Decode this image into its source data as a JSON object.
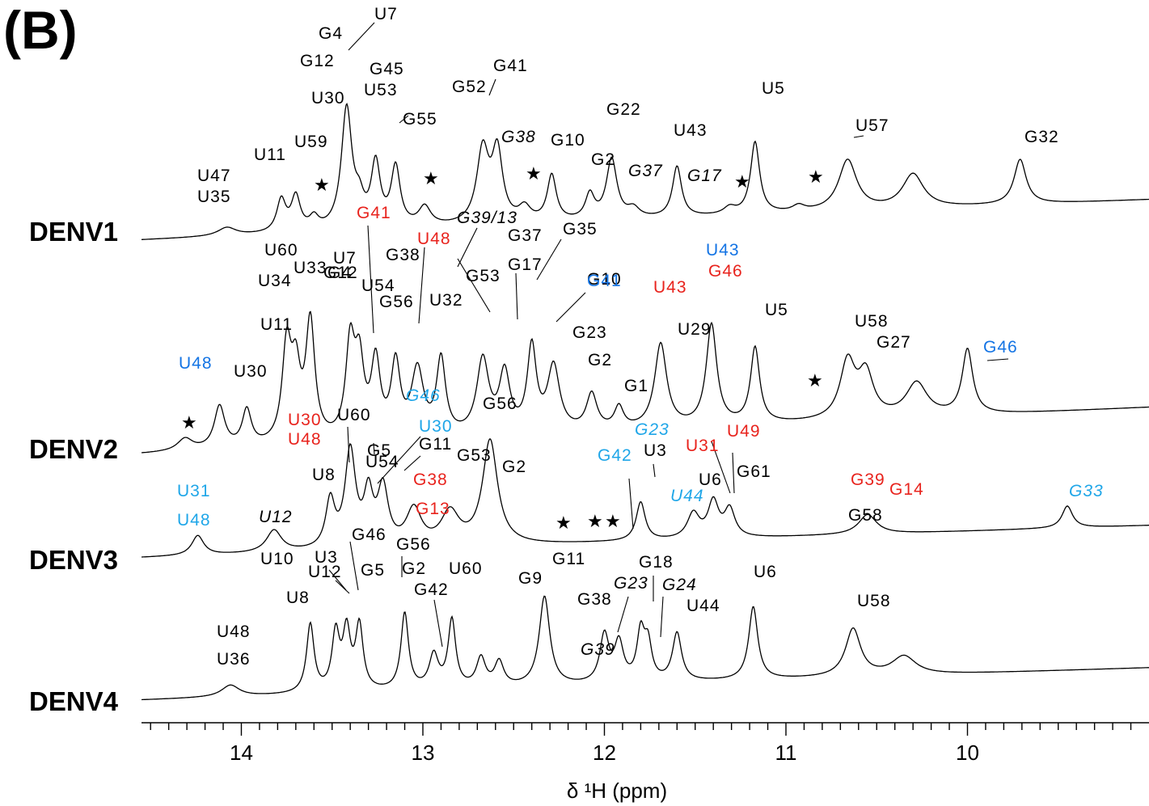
{
  "panel_label": "(B)",
  "colors": {
    "black": "#000000",
    "red": "#e8231d",
    "blue": "#1474e4",
    "cyan": "#1fa6e8"
  },
  "chart_data": {
    "type": "line",
    "title": "",
    "xlabel": "δ ¹H (ppm)",
    "ylabel": "",
    "xlim": [
      14.55,
      9.0
    ],
    "x_reversed": true,
    "x_ticks": [
      14,
      13,
      12,
      11,
      10
    ],
    "x_tick_labels": [
      "14",
      "13",
      "12",
      "11",
      "10"
    ],
    "minor_tick_step": 0.1,
    "grid": false,
    "legend": "none",
    "series": [
      {
        "name": "DENV1",
        "baseline": 0.0,
        "peaks": [
          {
            "ppm": 14.08,
            "h": 0.07,
            "w": 0.06
          },
          {
            "ppm": 13.78,
            "h": 0.27,
            "w": 0.03
          },
          {
            "ppm": 13.7,
            "h": 0.29,
            "w": 0.03
          },
          {
            "ppm": 13.6,
            "h": 0.1,
            "w": 0.03
          },
          {
            "ppm": 13.42,
            "h": 1.02,
            "w": 0.035
          },
          {
            "ppm": 13.35,
            "h": 0.18,
            "w": 0.03
          },
          {
            "ppm": 13.26,
            "h": 0.53,
            "w": 0.03
          },
          {
            "ppm": 13.15,
            "h": 0.5,
            "w": 0.03
          },
          {
            "ppm": 12.99,
            "h": 0.16,
            "w": 0.04
          },
          {
            "ppm": 12.67,
            "h": 0.62,
            "w": 0.04
          },
          {
            "ppm": 12.59,
            "h": 0.59,
            "w": 0.035
          },
          {
            "ppm": 12.44,
            "h": 0.12,
            "w": 0.04
          },
          {
            "ppm": 12.29,
            "h": 0.39,
            "w": 0.03
          },
          {
            "ppm": 12.08,
            "h": 0.21,
            "w": 0.03
          },
          {
            "ppm": 11.96,
            "h": 0.51,
            "w": 0.035
          },
          {
            "ppm": 11.84,
            "h": 0.08,
            "w": 0.04
          },
          {
            "ppm": 11.6,
            "h": 0.43,
            "w": 0.03
          },
          {
            "ppm": 11.31,
            "h": 0.06,
            "w": 0.04
          },
          {
            "ppm": 11.17,
            "h": 0.61,
            "w": 0.03
          },
          {
            "ppm": 10.93,
            "h": 0.05,
            "w": 0.04
          },
          {
            "ppm": 10.66,
            "h": 0.43,
            "w": 0.06
          },
          {
            "ppm": 10.3,
            "h": 0.29,
            "w": 0.07
          },
          {
            "ppm": 9.71,
            "h": 0.38,
            "w": 0.04
          }
        ]
      },
      {
        "name": "DENV2",
        "baseline": 0.0,
        "peaks": [
          {
            "ppm": 14.31,
            "h": 0.1,
            "w": 0.05
          },
          {
            "ppm": 14.12,
            "h": 0.35,
            "w": 0.035
          },
          {
            "ppm": 13.97,
            "h": 0.3,
            "w": 0.03
          },
          {
            "ppm": 13.75,
            "h": 0.78,
            "w": 0.03
          },
          {
            "ppm": 13.7,
            "h": 0.54,
            "w": 0.03
          },
          {
            "ppm": 13.62,
            "h": 0.98,
            "w": 0.03
          },
          {
            "ppm": 13.4,
            "h": 0.77,
            "w": 0.03
          },
          {
            "ppm": 13.35,
            "h": 0.59,
            "w": 0.03
          },
          {
            "ppm": 13.26,
            "h": 0.62,
            "w": 0.03
          },
          {
            "ppm": 13.15,
            "h": 0.6,
            "w": 0.03
          },
          {
            "ppm": 13.03,
            "h": 0.55,
            "w": 0.04
          },
          {
            "ppm": 12.9,
            "h": 0.63,
            "w": 0.03
          },
          {
            "ppm": 12.67,
            "h": 0.62,
            "w": 0.04
          },
          {
            "ppm": 12.55,
            "h": 0.49,
            "w": 0.035
          },
          {
            "ppm": 12.4,
            "h": 0.7,
            "w": 0.03
          },
          {
            "ppm": 12.28,
            "h": 0.54,
            "w": 0.04
          },
          {
            "ppm": 12.07,
            "h": 0.3,
            "w": 0.035
          },
          {
            "ppm": 11.92,
            "h": 0.18,
            "w": 0.03
          },
          {
            "ppm": 11.69,
            "h": 0.7,
            "w": 0.04
          },
          {
            "ppm": 11.41,
            "h": 0.84,
            "w": 0.035
          },
          {
            "ppm": 11.17,
            "h": 0.63,
            "w": 0.03
          },
          {
            "ppm": 10.66,
            "h": 0.47,
            "w": 0.05
          },
          {
            "ppm": 10.56,
            "h": 0.36,
            "w": 0.05
          },
          {
            "ppm": 10.28,
            "h": 0.28,
            "w": 0.07
          },
          {
            "ppm": 10.0,
            "h": 0.54,
            "w": 0.035
          }
        ]
      },
      {
        "name": "DENV3",
        "baseline": 0.0,
        "peaks": [
          {
            "ppm": 14.24,
            "h": 0.26,
            "w": 0.04
          },
          {
            "ppm": 13.82,
            "h": 0.29,
            "w": 0.05
          },
          {
            "ppm": 13.51,
            "h": 0.62,
            "w": 0.03
          },
          {
            "ppm": 13.4,
            "h": 1.27,
            "w": 0.035
          },
          {
            "ppm": 13.3,
            "h": 0.66,
            "w": 0.03
          },
          {
            "ppm": 13.22,
            "h": 0.76,
            "w": 0.035
          },
          {
            "ppm": 13.05,
            "h": 0.48,
            "w": 0.05
          },
          {
            "ppm": 12.85,
            "h": 0.43,
            "w": 0.06
          },
          {
            "ppm": 12.63,
            "h": 1.38,
            "w": 0.05
          },
          {
            "ppm": 11.8,
            "h": 0.51,
            "w": 0.03
          },
          {
            "ppm": 11.51,
            "h": 0.33,
            "w": 0.04
          },
          {
            "ppm": 11.4,
            "h": 0.47,
            "w": 0.035
          },
          {
            "ppm": 11.31,
            "h": 0.37,
            "w": 0.035
          },
          {
            "ppm": 10.55,
            "h": 0.26,
            "w": 0.06
          },
          {
            "ppm": 9.45,
            "h": 0.29,
            "w": 0.035
          }
        ]
      },
      {
        "name": "DENV4",
        "baseline": 0.0,
        "peaks": [
          {
            "ppm": 14.06,
            "h": 0.16,
            "w": 0.06
          },
          {
            "ppm": 13.62,
            "h": 0.95,
            "w": 0.025
          },
          {
            "ppm": 13.48,
            "h": 0.79,
            "w": 0.025
          },
          {
            "ppm": 13.42,
            "h": 0.8,
            "w": 0.025
          },
          {
            "ppm": 13.35,
            "h": 0.89,
            "w": 0.025
          },
          {
            "ppm": 13.1,
            "h": 1.06,
            "w": 0.025
          },
          {
            "ppm": 12.94,
            "h": 0.46,
            "w": 0.03
          },
          {
            "ppm": 12.84,
            "h": 0.94,
            "w": 0.025
          },
          {
            "ppm": 12.68,
            "h": 0.4,
            "w": 0.03
          },
          {
            "ppm": 12.58,
            "h": 0.34,
            "w": 0.03
          },
          {
            "ppm": 12.33,
            "h": 1.24,
            "w": 0.035
          },
          {
            "ppm": 12.0,
            "h": 0.66,
            "w": 0.03
          },
          {
            "ppm": 11.92,
            "h": 0.54,
            "w": 0.03
          },
          {
            "ppm": 11.8,
            "h": 0.66,
            "w": 0.025
          },
          {
            "ppm": 11.76,
            "h": 0.5,
            "w": 0.025
          },
          {
            "ppm": 11.6,
            "h": 0.67,
            "w": 0.03
          },
          {
            "ppm": 11.18,
            "h": 1.01,
            "w": 0.03
          },
          {
            "ppm": 10.63,
            "h": 0.66,
            "w": 0.05
          },
          {
            "ppm": 10.35,
            "h": 0.26,
            "w": 0.08
          }
        ]
      }
    ]
  },
  "annotations": {
    "denv1": [
      {
        "text": "G4",
        "color": "black",
        "italic": false
      },
      {
        "text": "U7",
        "color": "black",
        "italic": false
      },
      {
        "text": "G12",
        "color": "black",
        "italic": false
      },
      {
        "text": "G45",
        "color": "black",
        "italic": false
      },
      {
        "text": "U30",
        "color": "black",
        "italic": false
      },
      {
        "text": "U53",
        "color": "black",
        "italic": false
      },
      {
        "text": "G52",
        "color": "black",
        "italic": false
      },
      {
        "text": "G41",
        "color": "black",
        "italic": false
      },
      {
        "text": "G55",
        "color": "black",
        "italic": false
      },
      {
        "text": "G22",
        "color": "black",
        "italic": false
      },
      {
        "text": "U5",
        "color": "black",
        "italic": false
      },
      {
        "text": "U43",
        "color": "black",
        "italic": false
      },
      {
        "text": "U57",
        "color": "black",
        "italic": false
      },
      {
        "text": "G32",
        "color": "black",
        "italic": false
      },
      {
        "text": "U59",
        "color": "black",
        "italic": false
      },
      {
        "text": "U11",
        "color": "black",
        "italic": false
      },
      {
        "text": "G38",
        "color": "black",
        "italic": true
      },
      {
        "text": "G10",
        "color": "black",
        "italic": false
      },
      {
        "text": "G2",
        "color": "black",
        "italic": false
      },
      {
        "text": "G37",
        "color": "black",
        "italic": true
      },
      {
        "text": "G17",
        "color": "black",
        "italic": true
      },
      {
        "text": "U47",
        "color": "black",
        "italic": false
      },
      {
        "text": "U35",
        "color": "black",
        "italic": false
      }
    ],
    "denv2": [
      {
        "text": "G41",
        "color": "red",
        "italic": false
      },
      {
        "text": "U33",
        "color": "black",
        "italic": false
      },
      {
        "text": "G39/13",
        "color": "black",
        "italic": true
      },
      {
        "text": "U48",
        "color": "red",
        "italic": false
      },
      {
        "text": "G37",
        "color": "black",
        "italic": false
      },
      {
        "text": "G35",
        "color": "black",
        "italic": false
      },
      {
        "text": "U60",
        "color": "black",
        "italic": false
      },
      {
        "text": "U7",
        "color": "black",
        "italic": false
      },
      {
        "text": "G4",
        "color": "black",
        "italic": false
      },
      {
        "text": "G38",
        "color": "black",
        "italic": false
      },
      {
        "text": "G12",
        "color": "black",
        "italic": false
      },
      {
        "text": "G53",
        "color": "black",
        "italic": false
      },
      {
        "text": "G17",
        "color": "black",
        "italic": false
      },
      {
        "text": "G10",
        "color": "black",
        "italic": false
      },
      {
        "text": "G41",
        "color": "blue",
        "italic": false
      },
      {
        "text": "U43",
        "color": "blue",
        "italic": false
      },
      {
        "text": "G46",
        "color": "red",
        "italic": false
      },
      {
        "text": "U43",
        "color": "red",
        "italic": false
      },
      {
        "text": "U34",
        "color": "black",
        "italic": false
      },
      {
        "text": "U54",
        "color": "black",
        "italic": false
      },
      {
        "text": "G56",
        "color": "black",
        "italic": false
      },
      {
        "text": "U32",
        "color": "black",
        "italic": false
      },
      {
        "text": "U5",
        "color": "black",
        "italic": false
      },
      {
        "text": "U11",
        "color": "black",
        "italic": false
      },
      {
        "text": "G23",
        "color": "black",
        "italic": false
      },
      {
        "text": "U29",
        "color": "black",
        "italic": false
      },
      {
        "text": "U58",
        "color": "black",
        "italic": false
      },
      {
        "text": "G27",
        "color": "black",
        "italic": false
      },
      {
        "text": "G2",
        "color": "black",
        "italic": false
      },
      {
        "text": "U48",
        "color": "blue",
        "italic": false
      },
      {
        "text": "U30",
        "color": "black",
        "italic": false
      },
      {
        "text": "G46",
        "color": "blue",
        "italic": false
      },
      {
        "text": "G1",
        "color": "black",
        "italic": false
      }
    ],
    "denv3": [
      {
        "text": "G46",
        "color": "cyan",
        "italic": true
      },
      {
        "text": "G56",
        "color": "black",
        "italic": false
      },
      {
        "text": "U60",
        "color": "black",
        "italic": false
      },
      {
        "text": "U30",
        "color": "red",
        "italic": false
      },
      {
        "text": "U30",
        "color": "cyan",
        "italic": false
      },
      {
        "text": "U48",
        "color": "red",
        "italic": false
      },
      {
        "text": "G5",
        "color": "black",
        "italic": false
      },
      {
        "text": "G11",
        "color": "black",
        "italic": false
      },
      {
        "text": "G23",
        "color": "cyan",
        "italic": true
      },
      {
        "text": "U49",
        "color": "red",
        "italic": false
      },
      {
        "text": "U31",
        "color": "red",
        "italic": false
      },
      {
        "text": "G53",
        "color": "black",
        "italic": false
      },
      {
        "text": "G42",
        "color": "cyan",
        "italic": false
      },
      {
        "text": "U3",
        "color": "black",
        "italic": false
      },
      {
        "text": "U54",
        "color": "black",
        "italic": false
      },
      {
        "text": "G2",
        "color": "black",
        "italic": false
      },
      {
        "text": "G61",
        "color": "black",
        "italic": false
      },
      {
        "text": "U8",
        "color": "black",
        "italic": false
      },
      {
        "text": "G38",
        "color": "red",
        "italic": false
      },
      {
        "text": "U6",
        "color": "black",
        "italic": false
      },
      {
        "text": "G39",
        "color": "red",
        "italic": false
      },
      {
        "text": "G14",
        "color": "red",
        "italic": false
      },
      {
        "text": "U31",
        "color": "cyan",
        "italic": false
      },
      {
        "text": "U44",
        "color": "cyan",
        "italic": true
      },
      {
        "text": "G33",
        "color": "cyan",
        "italic": true
      },
      {
        "text": "G13",
        "color": "red",
        "italic": false
      },
      {
        "text": "G58",
        "color": "black",
        "italic": false
      },
      {
        "text": "U12",
        "color": "black",
        "italic": true
      },
      {
        "text": "U48",
        "color": "cyan",
        "italic": false
      }
    ],
    "denv4": [
      {
        "text": "U3",
        "color": "black",
        "italic": false
      },
      {
        "text": "G46",
        "color": "black",
        "italic": false
      },
      {
        "text": "G56",
        "color": "black",
        "italic": false
      },
      {
        "text": "G11",
        "color": "black",
        "italic": false
      },
      {
        "text": "U10",
        "color": "black",
        "italic": false
      },
      {
        "text": "U12",
        "color": "black",
        "italic": false
      },
      {
        "text": "G18",
        "color": "black",
        "italic": false
      },
      {
        "text": "G2",
        "color": "black",
        "italic": false
      },
      {
        "text": "G5",
        "color": "black",
        "italic": false
      },
      {
        "text": "U60",
        "color": "black",
        "italic": false
      },
      {
        "text": "G9",
        "color": "black",
        "italic": false
      },
      {
        "text": "G23",
        "color": "black",
        "italic": true
      },
      {
        "text": "G24",
        "color": "black",
        "italic": true
      },
      {
        "text": "U6",
        "color": "black",
        "italic": false
      },
      {
        "text": "U8",
        "color": "black",
        "italic": false
      },
      {
        "text": "G42",
        "color": "black",
        "italic": false
      },
      {
        "text": "G38",
        "color": "black",
        "italic": false
      },
      {
        "text": "U44",
        "color": "black",
        "italic": false
      },
      {
        "text": "U58",
        "color": "black",
        "italic": false
      },
      {
        "text": "U48",
        "color": "black",
        "italic": false
      },
      {
        "text": "U36",
        "color": "black",
        "italic": false
      },
      {
        "text": "G39",
        "color": "black",
        "italic": true
      }
    ]
  },
  "star_marker": "★"
}
